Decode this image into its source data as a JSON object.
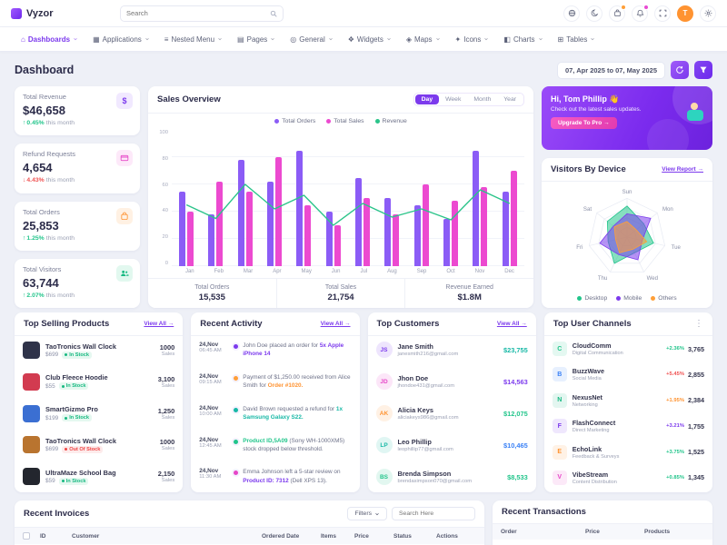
{
  "brand": {
    "name": "Vyzor"
  },
  "topbar": {
    "search_placeholder": "Search",
    "icons": [
      {
        "name": "globe-icon"
      },
      {
        "name": "moon-icon"
      },
      {
        "name": "cart-icon",
        "badge": "#ff9f38"
      },
      {
        "name": "bell-icon",
        "badge": "#e94ad3"
      },
      {
        "name": "expand-icon"
      }
    ],
    "avatar_initial": "T"
  },
  "nav": {
    "items": [
      {
        "label": "Dashboards",
        "icon": "home-icon",
        "glyph": "⌂",
        "active": true
      },
      {
        "label": "Applications",
        "icon": "apps-icon",
        "glyph": "▦"
      },
      {
        "label": "Nested Menu",
        "icon": "nested-menu-icon",
        "glyph": "≡"
      },
      {
        "label": "Pages",
        "icon": "pages-icon",
        "glyph": "▤"
      },
      {
        "label": "General",
        "icon": "general-icon",
        "glyph": "◎"
      },
      {
        "label": "Widgets",
        "icon": "widgets-icon",
        "glyph": "❖"
      },
      {
        "label": "Maps",
        "icon": "maps-icon",
        "glyph": "◈"
      },
      {
        "label": "Icons",
        "icon": "icons-icon",
        "glyph": "✦"
      },
      {
        "label": "Charts",
        "icon": "charts-icon",
        "glyph": "◧"
      },
      {
        "label": "Tables",
        "icon": "tables-icon",
        "glyph": "⊞"
      }
    ]
  },
  "page": {
    "title": "Dashboard",
    "date_range": "07, Apr 2025 to 07, May 2025"
  },
  "stats": [
    {
      "label": "Total Revenue",
      "value": "$46,658",
      "change": "0.45%",
      "direction": "up",
      "note": "this month",
      "icon": "dollar",
      "color": "#7c3aed",
      "tint": "#f1e9ff"
    },
    {
      "label": "Refund Requests",
      "value": "4,654",
      "change": "4.43%",
      "direction": "down",
      "note": "this month",
      "icon": "card",
      "color": "#e646c8",
      "tint": "#fde9f9"
    },
    {
      "label": "Total Orders",
      "value": "25,853",
      "change": "1.25%",
      "direction": "up",
      "note": "this month",
      "icon": "cart",
      "color": "#ff9331",
      "tint": "#fff1e3"
    },
    {
      "label": "Total Visitors",
      "value": "63,744",
      "change": "2.07%",
      "direction": "up",
      "note": "this month",
      "icon": "users",
      "color": "#17b981",
      "tint": "#e2f8ef"
    }
  ],
  "sales": {
    "title": "Sales Overview",
    "tabs": [
      "Day",
      "Week",
      "Month",
      "Year"
    ],
    "active_tab": "Day",
    "summary": [
      {
        "label": "Total Orders",
        "value": "15,535"
      },
      {
        "label": "Total Sales",
        "value": "21,754"
      },
      {
        "label": "Revenue Earned",
        "value": "$1.8M"
      }
    ]
  },
  "chart_data": [
    {
      "type": "bar",
      "title": "Sales Overview",
      "categories": [
        "Jan",
        "Feb",
        "Mar",
        "Apr",
        "May",
        "Jun",
        "Jul",
        "Aug",
        "Sep",
        "Oct",
        "Nov",
        "Dec"
      ],
      "series": [
        {
          "name": "Total Orders",
          "type": "bar",
          "color": "#8b5cf6",
          "values": [
            55,
            38,
            78,
            62,
            85,
            40,
            65,
            50,
            45,
            35,
            85,
            55
          ]
        },
        {
          "name": "Total Sales",
          "type": "bar",
          "color": "#ec4ad0",
          "values": [
            40,
            62,
            55,
            80,
            45,
            30,
            50,
            38,
            60,
            48,
            58,
            70
          ]
        },
        {
          "name": "Revenue",
          "type": "line",
          "color": "#2bc48a",
          "values": [
            45,
            35,
            60,
            42,
            52,
            30,
            46,
            36,
            42,
            34,
            56,
            46
          ]
        }
      ],
      "ylim": [
        0,
        100
      ],
      "yticks": [
        0,
        20,
        40,
        60,
        80,
        100
      ],
      "legend_position": "top"
    },
    {
      "type": "radar",
      "title": "Visitors By Device",
      "axes": [
        "Sun",
        "Mon",
        "Tue",
        "Wed",
        "Thu",
        "Fri",
        "Sat"
      ],
      "series": [
        {
          "name": "Desktop",
          "color": "#22c58b",
          "values": [
            80,
            55,
            70,
            45,
            75,
            50,
            65
          ]
        },
        {
          "name": "Mobile",
          "color": "#7c3aed",
          "values": [
            60,
            78,
            40,
            65,
            50,
            72,
            45
          ]
        },
        {
          "name": "Others",
          "color": "#ff9f38",
          "values": [
            40,
            30,
            52,
            35,
            45,
            30,
            42
          ]
        }
      ],
      "rmax": 100
    }
  ],
  "promo": {
    "greeting": "Hi, Tom Phillip 👋",
    "subtext": "Check out the latest sales updates.",
    "button": "Upgrade To Pro →"
  },
  "visitors": {
    "title": "Visitors By Device",
    "link": "View Report →"
  },
  "products": {
    "title": "Top Selling Products",
    "link": "View All →",
    "items": [
      {
        "name": "TaoTronics Wall Clock",
        "price": "$699",
        "status": "In Stock",
        "sales": "1000",
        "unit": "Sales",
        "thumb": "#2f3349"
      },
      {
        "name": "Club Fleece Hoodie",
        "price": "$55",
        "status": "In Stock",
        "sales": "3,100",
        "unit": "Sales",
        "thumb": "#d23b50"
      },
      {
        "name": "SmartGizmo Pro",
        "price": "$199",
        "status": "In Stock",
        "sales": "1,250",
        "unit": "Sales",
        "thumb": "#3b6fd2"
      },
      {
        "name": "TaoTronics Wall Clock",
        "price": "$699",
        "status": "Out Of Stock",
        "sales": "1000",
        "unit": "Sales",
        "thumb": "#b9742f"
      },
      {
        "name": "UltraMaze School Bag",
        "price": "$59",
        "status": "In Stock",
        "sales": "2,150",
        "unit": "Sales",
        "thumb": "#23262e"
      }
    ]
  },
  "activity": {
    "title": "Recent Activity",
    "link": "View All →",
    "items": [
      {
        "date": "24,Nov",
        "time": "06:45 AM",
        "dot": "#7c3aed",
        "pre": "John Doe placed an order for ",
        "link": "5x Apple iPhone 14",
        "post": "",
        "link_color": "#7c3aed"
      },
      {
        "date": "24,Nov",
        "time": "09:15 AM",
        "dot": "#ff9f38",
        "pre": "Payment of $1,250.00 received from Alice Smith for ",
        "link": "Order #1020.",
        "post": "",
        "link_color": "#ff9331"
      },
      {
        "date": "24,Nov",
        "time": "10:00 AM",
        "dot": "#17b8a6",
        "pre": "David Brown requested a refund for ",
        "link": "1x Samsung Galaxy S22.",
        "post": "",
        "link_color": "#17b8a6"
      },
      {
        "date": "24,Nov",
        "time": "12:45 AM",
        "dot": "#22c58b",
        "pre": "",
        "link": "Product ID,5A09",
        "post": " (Sony WH-1000XM5) stock dropped below threshold.",
        "link_color": "#22c58b"
      },
      {
        "date": "24,Nov",
        "time": "11:30 AM",
        "dot": "#e646c8",
        "pre": "Emma Johnson left a 5-star review on ",
        "link": "Product ID: 7312",
        "post": " (Dell XPS 13).",
        "link_color": "#7c3aed"
      }
    ]
  },
  "customers": {
    "title": "Top Customers",
    "link": "View All →",
    "items": [
      {
        "initials": "JS",
        "name": "Jane Smith",
        "email": "janesmith216@gmail.com",
        "amount": "$23,755",
        "amount_color": "#17b8a6",
        "avatar": "#7c3aed"
      },
      {
        "initials": "JD",
        "name": "Jhon Doe",
        "email": "jhondoe431@gmail.com",
        "amount": "$14,563",
        "amount_color": "#7c3aed",
        "avatar": "#e646c8"
      },
      {
        "initials": "AK",
        "name": "Alicia Keys",
        "email": "aliciakeys986@gmail.com",
        "amount": "$12,075",
        "amount_color": "#22c58b",
        "avatar": "#ff9331"
      },
      {
        "initials": "LP",
        "name": "Leo Phillip",
        "email": "leophillip77@gmail.com",
        "amount": "$10,465",
        "amount_color": "#3b82f6",
        "avatar": "#17b8a6"
      },
      {
        "initials": "BS",
        "name": "Brenda Simpson",
        "email": "brendasimpson070@gmail.com",
        "amount": "$8,533",
        "amount_color": "#22c58b",
        "avatar": "#22c58b"
      }
    ]
  },
  "channels": {
    "title": "Top User Channels",
    "items": [
      {
        "name": "CloudComm",
        "desc": "Digital Communication",
        "pct": "+2.36%",
        "pct_color": "#22c58b",
        "value": "3,765",
        "initial": "C",
        "color": "#22c58b"
      },
      {
        "name": "BuzzWave",
        "desc": "Social Media",
        "pct": "+5.45%",
        "pct_color": "#f05252",
        "value": "2,855",
        "initial": "B",
        "color": "#3b82f6"
      },
      {
        "name": "NexusNet",
        "desc": "Networking",
        "pct": "+1.95%",
        "pct_color": "#ff9331",
        "value": "2,384",
        "initial": "N",
        "color": "#17b981"
      },
      {
        "name": "FlashConnect",
        "desc": "Direct Marketing",
        "pct": "+3.21%",
        "pct_color": "#7c3aed",
        "value": "1,755",
        "initial": "F",
        "color": "#7c3aed"
      },
      {
        "name": "EchoLink",
        "desc": "Feedback & Surveys",
        "pct": "+3.75%",
        "pct_color": "#22c58b",
        "value": "1,525",
        "initial": "E",
        "color": "#ff9331"
      },
      {
        "name": "VibeStream",
        "desc": "Content Distribution",
        "pct": "+0.85%",
        "pct_color": "#22c58b",
        "value": "1,345",
        "initial": "V",
        "color": "#e646c8"
      }
    ]
  },
  "invoices": {
    "title": "Recent Invoices",
    "filters_label": "Filters",
    "search_placeholder": "Search Here",
    "columns": [
      "ID",
      "Customer",
      "Ordered Date",
      "Items",
      "Price",
      "Status",
      "Actions"
    ]
  },
  "transactions": {
    "title": "Recent Transactions",
    "columns": [
      "Order",
      "Price",
      "Products"
    ]
  }
}
